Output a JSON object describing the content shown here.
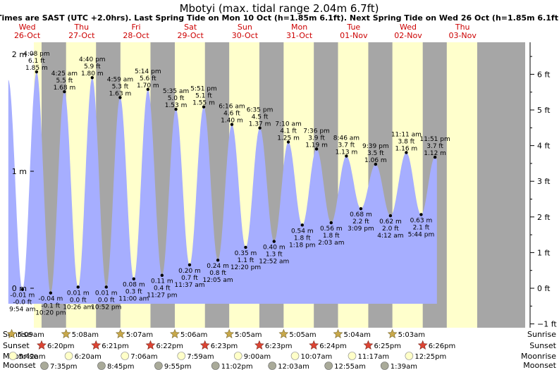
{
  "title": "Mbotyi (max. tidal range 2.04m 6.7ft)",
  "subtitle": "Times are SAST (UTC +2.0hrs). Last Spring Tide on Mon 10 Oct (h=1.85m 6.1ft). Next Spring Tide on Wed 26 Oct (h=1.85m 6.1ft)",
  "colors": {
    "night": "#a6a6a6",
    "day": "#ffffcc",
    "tide": "#a6aeff",
    "date": "#cc0000",
    "sunrise": "#c8a84a",
    "sunset": "#dd4433",
    "moonrise": "#ffffc8",
    "moonset": "#a9aa99"
  },
  "chart_data": {
    "type": "area",
    "title": "Mbotyi (max. tidal range 2.04m 6.7ft)",
    "x_unit": "days from 26-Oct 00:00 (SAST)",
    "left_axis": {
      "label": "m",
      "ticks": [
        "2 m",
        "1 m",
        "0 m"
      ],
      "tick_values": [
        2,
        1,
        0
      ],
      "range": [
        -0.33,
        2.05
      ]
    },
    "right_axis": {
      "ticks": [
        "6 ft",
        "5 ft",
        "4 ft",
        "3 ft",
        "2 ft",
        "1 ft",
        "0 ft",
        "−1 ft"
      ],
      "tick_values": [
        6,
        5,
        4,
        3,
        2,
        1,
        0,
        -1
      ]
    },
    "days": [
      {
        "weekday": "Wed",
        "date": "26-Oct"
      },
      {
        "weekday": "Thu",
        "date": "27-Oct"
      },
      {
        "weekday": "Fri",
        "date": "28-Oct"
      },
      {
        "weekday": "Sat",
        "date": "29-Oct"
      },
      {
        "weekday": "Sun",
        "date": "30-Oct"
      },
      {
        "weekday": "Mon",
        "date": "31-Oct"
      },
      {
        "weekday": "Tue",
        "date": "01-Nov"
      },
      {
        "weekday": "Wed",
        "date": "02-Nov"
      },
      {
        "weekday": "Thu",
        "date": "03-Nov"
      }
    ],
    "tides": [
      {
        "time": "9:54 am",
        "t": 0.4125,
        "m": "-0.01 m",
        "ft": "-0.0 ft",
        "h": -0.01,
        "type": "low"
      },
      {
        "time": "4:08 pm",
        "t": 0.6722,
        "m": "1.85 m",
        "ft": "6.1 ft",
        "h": 1.85,
        "type": "high"
      },
      {
        "time": "10:20 pm",
        "t": 0.9306,
        "m": "-0.04 m",
        "ft": "-0.1 ft",
        "h": -0.04,
        "type": "low"
      },
      {
        "time": "4:25 am",
        "t": 1.184,
        "m": "1.68 m",
        "ft": "5.5 ft",
        "h": 1.68,
        "type": "high"
      },
      {
        "time": "10:26 am",
        "t": 1.4347,
        "m": "0.01 m",
        "ft": "0.0 ft",
        "h": 0.01,
        "type": "low"
      },
      {
        "time": "4:40 pm",
        "t": 1.6944,
        "m": "1.80 m",
        "ft": "5.9 ft",
        "h": 1.8,
        "type": "high"
      },
      {
        "time": "10:52 pm",
        "t": 1.9528,
        "m": "0.01 m",
        "ft": "0.0 ft",
        "h": 0.01,
        "type": "low"
      },
      {
        "time": "4:59 am",
        "t": 2.2076,
        "m": "1.63 m",
        "ft": "5.3 ft",
        "h": 1.63,
        "type": "high"
      },
      {
        "time": "11:00 am",
        "t": 2.4583,
        "m": "0.08 m",
        "ft": "0.3 ft",
        "h": 0.08,
        "type": "low"
      },
      {
        "time": "5:14 pm",
        "t": 2.7181,
        "m": "1.70 m",
        "ft": "5.6 ft",
        "h": 1.7,
        "type": "high"
      },
      {
        "time": "11:27 pm",
        "t": 2.9771,
        "m": "0.11 m",
        "ft": "0.4 ft",
        "h": 0.11,
        "type": "low"
      },
      {
        "time": "5:35 am",
        "t": 3.2326,
        "m": "1.53 m",
        "ft": "5.0 ft",
        "h": 1.53,
        "type": "high"
      },
      {
        "time": "11:37 am",
        "t": 3.484,
        "m": "0.20 m",
        "ft": "0.7 ft",
        "h": 0.2,
        "type": "low"
      },
      {
        "time": "5:51 pm",
        "t": 3.7438,
        "m": "1.55 m",
        "ft": "5.1 ft",
        "h": 1.55,
        "type": "high"
      },
      {
        "time": "12:05 am",
        "t": 4.0035,
        "m": "0.24 m",
        "ft": "0.8 ft",
        "h": 0.24,
        "type": "low"
      },
      {
        "time": "6:16 am",
        "t": 4.2611,
        "m": "1.40 m",
        "ft": "4.6 ft",
        "h": 1.4,
        "type": "high"
      },
      {
        "time": "12:20 pm",
        "t": 4.5139,
        "m": "0.35 m",
        "ft": "1.1 ft",
        "h": 0.35,
        "type": "low"
      },
      {
        "time": "6:35 pm",
        "t": 4.7743,
        "m": "1.37 m",
        "ft": "4.5 ft",
        "h": 1.37,
        "type": "high"
      },
      {
        "time": "12:52 am",
        "t": 5.0361,
        "m": "0.40 m",
        "ft": "1.3 ft",
        "h": 0.4,
        "type": "low"
      },
      {
        "time": "7:10 am",
        "t": 5.2986,
        "m": "1.25 m",
        "ft": "4.1 ft",
        "h": 1.25,
        "type": "high"
      },
      {
        "time": "1:18 pm",
        "t": 5.5542,
        "m": "0.54 m",
        "ft": "1.8 ft",
        "h": 0.54,
        "type": "low"
      },
      {
        "time": "7:36 pm",
        "t": 5.8167,
        "m": "1.19 m",
        "ft": "3.9 ft",
        "h": 1.19,
        "type": "high"
      },
      {
        "time": "2:03 am",
        "t": 6.0854,
        "m": "0.56 m",
        "ft": "1.8 ft",
        "h": 0.56,
        "type": "low"
      },
      {
        "time": "8:46 am",
        "t": 6.3653,
        "m": "1.13 m",
        "ft": "3.7 ft",
        "h": 1.13,
        "type": "high"
      },
      {
        "time": "3:09 pm",
        "t": 6.6313,
        "m": "0.68 m",
        "ft": "2.2 ft",
        "h": 0.68,
        "type": "low"
      },
      {
        "time": "9:39 pm",
        "t": 6.9021,
        "m": "1.06 m",
        "ft": "3.5 ft",
        "h": 1.06,
        "type": "high"
      },
      {
        "time": "4:12 am",
        "t": 7.175,
        "m": "0.62 m",
        "ft": "2.0 ft",
        "h": 0.62,
        "type": "low"
      },
      {
        "time": "11:11 am",
        "t": 7.466,
        "m": "1.16 m",
        "ft": "3.8 ft",
        "h": 1.16,
        "type": "high"
      },
      {
        "time": "5:44 pm",
        "t": 7.7389,
        "m": "0.63 m",
        "ft": "2.1 ft",
        "h": 0.63,
        "type": "low"
      },
      {
        "time": "11:51 pm",
        "t": 7.9938,
        "m": "1.12 m",
        "ft": "3.7 ft",
        "h": 1.12,
        "type": "high"
      }
    ],
    "daylight": [
      {
        "rise_t": 0.2146,
        "set_t": 0.7639
      },
      {
        "rise_t": 1.2139,
        "set_t": 1.7646
      },
      {
        "rise_t": 2.2132,
        "set_t": 2.7653
      },
      {
        "rise_t": 3.2125,
        "set_t": 3.766
      },
      {
        "rise_t": 4.2118,
        "set_t": 4.766
      },
      {
        "rise_t": 5.2118,
        "set_t": 5.7667
      },
      {
        "rise_t": 6.2111,
        "set_t": 6.7674
      },
      {
        "rise_t": 7.2104,
        "set_t": 7.7681
      },
      {
        "rise_t": 8.2097,
        "set_t": 8.7688
      }
    ],
    "tide_curve_start_t": -0.07,
    "tide_curve_end_t": 8.03
  },
  "rows": {
    "labels": {
      "sunrise": "Sunrise",
      "sunset": "Sunset",
      "moonrise": "Moonrise",
      "moonset": "Moonset"
    },
    "sunrise": [
      {
        "t": 0.2146,
        "label": "5:09am"
      },
      {
        "t": 1.2139,
        "label": "5:08am"
      },
      {
        "t": 2.2132,
        "label": "5:07am"
      },
      {
        "t": 3.2125,
        "label": "5:06am"
      },
      {
        "t": 4.2118,
        "label": "5:05am"
      },
      {
        "t": 5.2118,
        "label": "5:05am"
      },
      {
        "t": 6.2111,
        "label": "5:04am"
      },
      {
        "t": 7.2104,
        "label": "5:03am"
      }
    ],
    "sunset": [
      {
        "t": 0.7639,
        "label": "6:20pm"
      },
      {
        "t": 1.7646,
        "label": "6:21pm"
      },
      {
        "t": 2.7653,
        "label": "6:22pm"
      },
      {
        "t": 3.766,
        "label": "6:23pm"
      },
      {
        "t": 4.766,
        "label": "6:23pm"
      },
      {
        "t": 5.7667,
        "label": "6:24pm"
      },
      {
        "t": 6.7674,
        "label": "6:25pm"
      },
      {
        "t": 7.7681,
        "label": "6:26pm"
      }
    ],
    "moonrise": [
      {
        "t": 0.2375,
        "label": "5:42am"
      },
      {
        "t": 1.2639,
        "label": "6:20am"
      },
      {
        "t": 2.2958,
        "label": "7:06am"
      },
      {
        "t": 3.3326,
        "label": "7:59am"
      },
      {
        "t": 4.375,
        "label": "9:00am"
      },
      {
        "t": 5.4215,
        "label": "10:07am"
      },
      {
        "t": 6.4701,
        "label": "11:17am"
      },
      {
        "t": 7.5174,
        "label": "12:25pm"
      }
    ],
    "moonset": [
      {
        "t": 0.816,
        "label": "7:35pm"
      },
      {
        "t": 1.8646,
        "label": "8:45pm"
      },
      {
        "t": 2.9132,
        "label": "9:55pm"
      },
      {
        "t": 3.9597,
        "label": "11:02pm"
      },
      {
        "t": 5.0021,
        "label": "12:03am"
      },
      {
        "t": 6.0382,
        "label": "12:55am"
      },
      {
        "t": 7.0687,
        "label": "1:39am"
      }
    ]
  }
}
